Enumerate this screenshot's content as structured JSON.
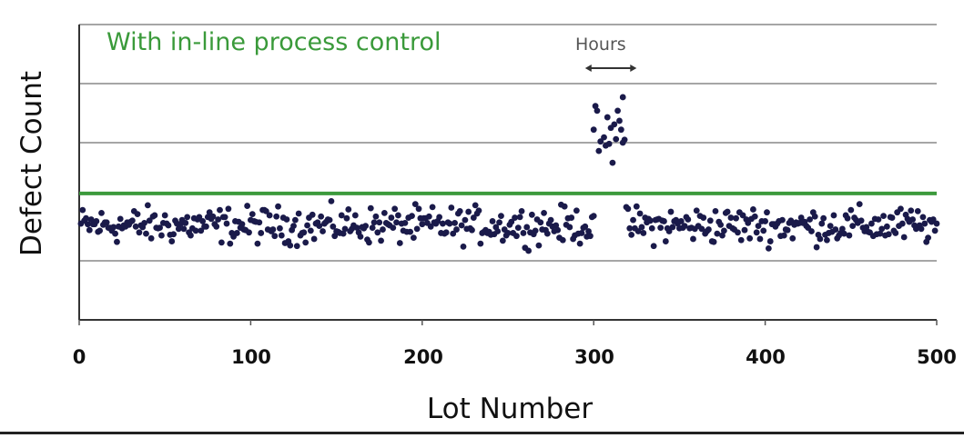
{
  "chart_data": {
    "type": "scatter",
    "title": "",
    "annotation": "With in-line process control",
    "xlabel": "Lot Number",
    "ylabel": "Defect Count",
    "xlim": [
      0,
      500
    ],
    "ylim": [
      0,
      5
    ],
    "x_ticks": [
      0,
      100,
      200,
      300,
      400,
      500
    ],
    "y_ticks_labeled": false,
    "grid": {
      "horizontal": true,
      "y_levels": [
        1,
        3,
        4,
        5
      ]
    },
    "control_limit": {
      "value": 2.14,
      "color": "#3c9a3c",
      "label": "control limit"
    },
    "hours_annotation": {
      "label": "Hours",
      "x_start": 295,
      "x_end": 325
    },
    "point_color": "#1a1a4a",
    "series": [
      {
        "name": "baseline lots",
        "pattern": {
          "x_ranges": [
            [
              1,
              300
            ],
            [
              319,
              500
            ]
          ],
          "center": 1.6,
          "spread": 0.35
        },
        "x": [],
        "y": []
      },
      {
        "name": "excursion lots",
        "x": [
          317,
          301,
          302,
          314,
          308,
          315,
          312,
          300,
          310,
          316,
          306,
          313,
          304,
          309,
          318,
          317,
          303,
          311,
          307
        ],
        "y": [
          3.77,
          3.62,
          3.54,
          3.54,
          3.43,
          3.37,
          3.31,
          3.22,
          3.25,
          3.22,
          3.09,
          3.06,
          3.02,
          2.98,
          3.05,
          3.0,
          2.86,
          2.66,
          2.95
        ]
      }
    ]
  }
}
